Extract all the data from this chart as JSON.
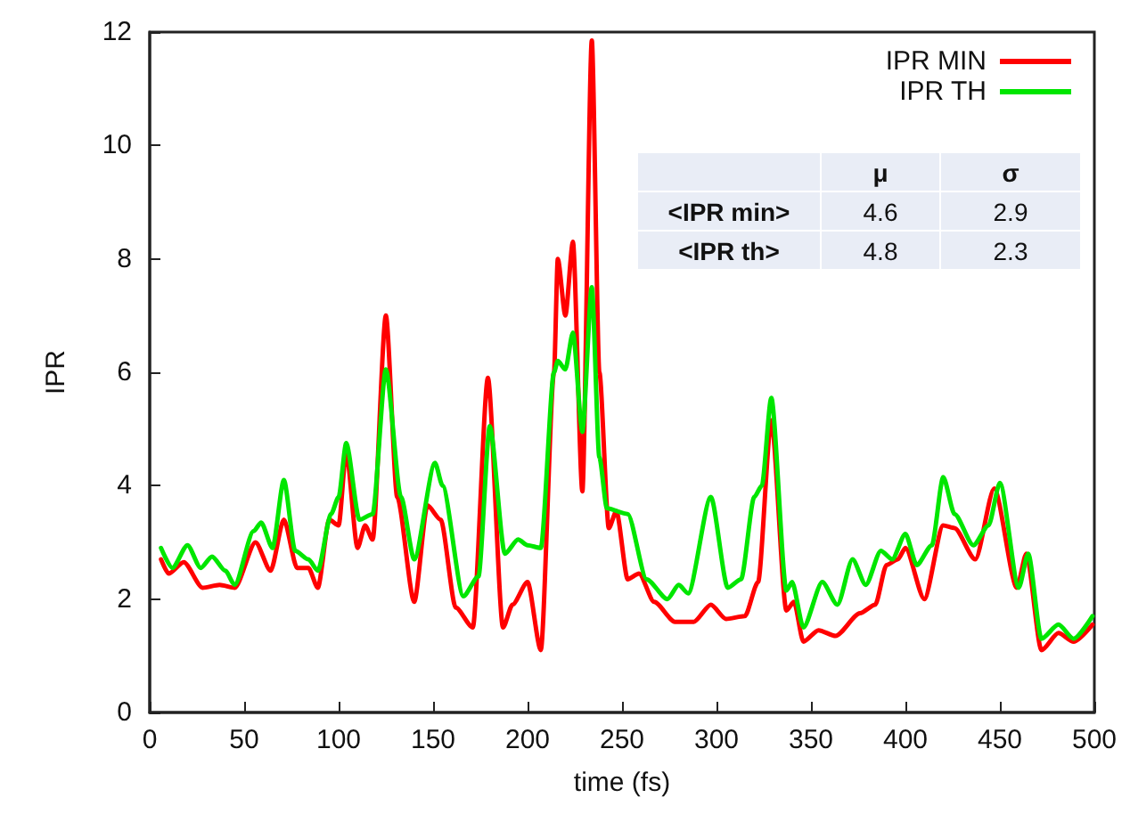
{
  "chart_data": {
    "type": "line",
    "xlabel": "time (fs)",
    "ylabel": "IPR",
    "xlim": [
      0,
      500
    ],
    "xticks": [
      0,
      50,
      100,
      150,
      200,
      250,
      300,
      350,
      400,
      450,
      500
    ],
    "ylim": [
      0,
      12
    ],
    "yticks": [
      0,
      2,
      4,
      6,
      8,
      10,
      12
    ],
    "grid": false,
    "legend": "top right",
    "marker": "none",
    "line_style": "solid",
    "annotations": [
      "μ",
      "σ",
      "<IPR min>",
      "4.6",
      "2.9",
      "<IPR th>",
      "4.8",
      "2.3"
    ],
    "series": [
      {
        "name": "IPR MIN",
        "color": "#ff0000",
        "x": [
          6,
          10,
          18,
          28,
          37,
          45,
          56,
          64,
          71,
          78,
          84,
          89,
          95,
          100,
          104,
          110,
          114,
          118,
          125,
          131,
          140,
          147,
          154,
          162,
          171,
          179,
          187,
          192,
          200,
          207,
          214,
          216,
          220,
          224,
          229,
          234,
          238,
          243,
          247,
          253,
          259,
          267,
          278,
          288,
          297,
          305,
          315,
          322,
          329,
          337,
          341,
          346,
          354,
          363,
          376,
          384,
          390,
          396,
          400,
          410,
          420,
          426,
          437,
          447,
          459,
          464,
          472,
          481,
          489,
          499
        ],
        "values": [
          2.7,
          2.45,
          2.65,
          2.2,
          2.25,
          2.2,
          3.0,
          2.5,
          3.4,
          2.55,
          2.55,
          2.2,
          3.4,
          3.3,
          4.6,
          2.9,
          3.3,
          3.05,
          7.0,
          3.8,
          1.95,
          3.65,
          3.4,
          1.85,
          1.5,
          5.9,
          1.5,
          1.9,
          2.3,
          1.1,
          6.0,
          8.0,
          7.0,
          8.3,
          3.9,
          11.85,
          6.0,
          3.25,
          3.55,
          2.35,
          2.45,
          1.95,
          1.6,
          1.6,
          1.9,
          1.65,
          1.7,
          2.3,
          5.15,
          1.8,
          1.95,
          1.25,
          1.45,
          1.35,
          1.75,
          1.9,
          2.6,
          2.7,
          2.9,
          2.0,
          3.3,
          3.25,
          2.7,
          3.95,
          2.2,
          2.8,
          1.1,
          1.4,
          1.25,
          1.55
        ]
      },
      {
        "name": "IPR TH",
        "color": "#00e600",
        "x": [
          6,
          12,
          20,
          27,
          33,
          40,
          45,
          55,
          59,
          65,
          71,
          77,
          84,
          89,
          96,
          100,
          104,
          111,
          118,
          125,
          133,
          140,
          151,
          155,
          166,
          174,
          180,
          188,
          195,
          200,
          207,
          214,
          216,
          220,
          224,
          229,
          234,
          238,
          242,
          253,
          263,
          274,
          280,
          285,
          297,
          306,
          313,
          320,
          324,
          329,
          337,
          340,
          346,
          356,
          364,
          372,
          379,
          387,
          393,
          400,
          406,
          414,
          420,
          426,
          436,
          444,
          450,
          460,
          465,
          472,
          481,
          489,
          499
        ],
        "values": [
          2.9,
          2.55,
          2.95,
          2.55,
          2.75,
          2.5,
          2.25,
          3.2,
          3.35,
          2.9,
          4.1,
          2.85,
          2.7,
          2.5,
          3.5,
          3.8,
          4.75,
          3.4,
          3.5,
          6.05,
          3.8,
          2.7,
          4.4,
          4.0,
          2.05,
          2.4,
          5.05,
          2.8,
          3.05,
          2.95,
          2.9,
          6.0,
          6.2,
          6.05,
          6.7,
          4.95,
          7.5,
          4.5,
          3.6,
          3.5,
          2.35,
          2.0,
          2.25,
          2.1,
          3.8,
          2.2,
          2.35,
          3.8,
          4.0,
          5.55,
          2.15,
          2.3,
          1.5,
          2.3,
          1.9,
          2.7,
          2.25,
          2.85,
          2.7,
          3.15,
          2.6,
          2.95,
          4.15,
          3.5,
          2.95,
          3.3,
          4.05,
          2.2,
          2.8,
          1.3,
          1.55,
          1.3,
          1.7
        ]
      }
    ]
  }
}
